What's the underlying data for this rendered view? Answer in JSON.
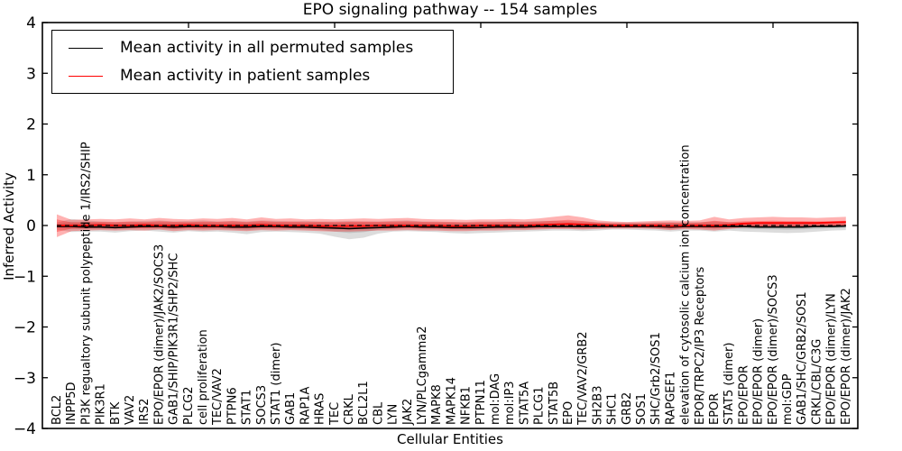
{
  "chart_data": {
    "type": "line",
    "title": "EPO signaling pathway -- 154 samples",
    "xlabel": "Cellular Entities",
    "ylabel": "Inferred Activity",
    "ylim": [
      -4,
      4
    ],
    "yticks": [
      4,
      3,
      2,
      1,
      0,
      -1,
      -2,
      -3,
      -4
    ],
    "grid": false,
    "legend_position": "upper left",
    "zero_line": {
      "style": "dashed",
      "color": "#000000",
      "y": 0
    },
    "colors": {
      "permuted_line": "#000000",
      "permuted_band": "rgba(130,130,130,0.28)",
      "patient_line": "#ff0000",
      "patient_band": "rgba(255,0,0,0.30)"
    },
    "categories": [
      "BCL2",
      "INPP5D",
      "PI3K regualtory subunit polypeptide 1/IRS2/SHIP",
      "PIK3R1",
      "BTK",
      "VAV2",
      "IRS2",
      "EPO/EPOR (dimer)/JAK2/SOCS3",
      "GAB1/SHIP/PIK3R1/SHP2/SHC",
      "PLCG2",
      "cell proliferation",
      "TEC/VAV2",
      "PTPN6",
      "STAT1",
      "SOCS3",
      "STAT1 (dimer)",
      "GAB1",
      "RAP1A",
      "HRAS",
      "TEC",
      "CRKL",
      "BCL2L1",
      "CBL",
      "LYN",
      "JAK2",
      "LYN/PLCgamma2",
      "MAPK8",
      "MAPK14",
      "NFKB1",
      "PTPN11",
      "mol:DAG",
      "mol:IP3",
      "STAT5A",
      "PLCG1",
      "STAT5B",
      "EPO",
      "TEC/VAV2/GRB2",
      "SH2B3",
      "SHC1",
      "GRB2",
      "SOS1",
      "SHC/Grb2/SOS1",
      "RAPGEF1",
      "elevation of cytosolic calcium ion concentration",
      "EPOR/TRPC2/IP3 Receptors",
      "EPOR",
      "STAT5 (dimer)",
      "EPO/EPOR",
      "EPO/EPOR (dimer)",
      "EPO/EPOR (dimer)/SOCS3",
      "mol:GDP",
      "GAB1/SHC/GRB2/SOS1",
      "CRKL/CBL/C3G",
      "EPO/EPOR (dimer)/LYN",
      "EPO/EPOR (dimer)/JAK2"
    ],
    "series": [
      {
        "name": "Mean activity in all permuted samples",
        "color": "#000000",
        "values": [
          -0.02,
          -0.02,
          -0.03,
          -0.03,
          -0.04,
          -0.03,
          -0.02,
          -0.02,
          -0.03,
          -0.02,
          -0.02,
          -0.02,
          -0.03,
          -0.03,
          -0.02,
          -0.02,
          -0.03,
          -0.03,
          -0.04,
          -0.05,
          -0.06,
          -0.05,
          -0.04,
          -0.03,
          -0.02,
          -0.03,
          -0.03,
          -0.04,
          -0.04,
          -0.04,
          -0.03,
          -0.03,
          -0.03,
          -0.02,
          -0.02,
          -0.02,
          -0.02,
          -0.02,
          -0.02,
          -0.02,
          -0.02,
          -0.02,
          -0.03,
          -0.02,
          -0.02,
          -0.02,
          -0.02,
          -0.02,
          -0.03,
          -0.03,
          -0.03,
          -0.03,
          -0.02,
          -0.02,
          -0.01
        ],
        "band_upper": [
          0.06,
          0.13,
          0.1,
          0.08,
          0.07,
          0.08,
          0.09,
          0.1,
          0.08,
          0.09,
          0.1,
          0.08,
          0.09,
          0.08,
          0.1,
          0.09,
          0.08,
          0.09,
          0.08,
          0.08,
          0.09,
          0.08,
          0.08,
          0.09,
          0.1,
          0.08,
          0.08,
          0.07,
          0.07,
          0.08,
          0.08,
          0.08,
          0.08,
          0.09,
          0.09,
          0.08,
          0.08,
          0.07,
          0.06,
          0.06,
          0.06,
          0.07,
          0.07,
          0.07,
          0.07,
          0.08,
          0.07,
          0.06,
          0.05,
          0.05,
          0.05,
          0.05,
          0.05,
          0.05,
          0.06
        ],
        "band_lower": [
          -0.08,
          -0.13,
          -0.12,
          -0.12,
          -0.14,
          -0.11,
          -0.1,
          -0.12,
          -0.14,
          -0.11,
          -0.13,
          -0.12,
          -0.14,
          -0.17,
          -0.13,
          -0.12,
          -0.13,
          -0.14,
          -0.16,
          -0.22,
          -0.27,
          -0.24,
          -0.16,
          -0.12,
          -0.11,
          -0.12,
          -0.13,
          -0.15,
          -0.16,
          -0.15,
          -0.14,
          -0.13,
          -0.12,
          -0.11,
          -0.1,
          -0.1,
          -0.11,
          -0.1,
          -0.08,
          -0.08,
          -0.09,
          -0.1,
          -0.12,
          -0.1,
          -0.1,
          -0.12,
          -0.1,
          -0.12,
          -0.13,
          -0.14,
          -0.15,
          -0.14,
          -0.12,
          -0.1,
          -0.09
        ]
      },
      {
        "name": "Mean activity in patient samples",
        "color": "#ff0000",
        "values": [
          0.0,
          0.0,
          0.0,
          0.01,
          0.0,
          0.0,
          0.01,
          0.0,
          0.0,
          0.01,
          0.0,
          0.0,
          0.0,
          0.0,
          0.01,
          0.0,
          0.0,
          0.0,
          -0.01,
          -0.01,
          -0.01,
          -0.01,
          0.0,
          0.0,
          0.0,
          0.0,
          0.0,
          -0.01,
          -0.01,
          0.0,
          0.0,
          0.0,
          0.0,
          0.01,
          0.02,
          0.03,
          0.02,
          0.01,
          0.0,
          0.0,
          0.0,
          0.0,
          -0.01,
          0.0,
          0.0,
          0.0,
          0.01,
          0.04,
          0.05,
          0.05,
          0.05,
          0.05,
          0.05,
          0.06,
          0.07
        ],
        "band_upper": [
          0.22,
          0.11,
          0.12,
          0.13,
          0.12,
          0.14,
          0.12,
          0.15,
          0.13,
          0.12,
          0.14,
          0.13,
          0.15,
          0.12,
          0.16,
          0.13,
          0.14,
          0.12,
          0.13,
          0.12,
          0.13,
          0.14,
          0.13,
          0.14,
          0.15,
          0.13,
          0.12,
          0.12,
          0.11,
          0.12,
          0.12,
          0.13,
          0.12,
          0.14,
          0.17,
          0.2,
          0.16,
          0.1,
          0.08,
          0.07,
          0.08,
          0.09,
          0.1,
          0.09,
          0.1,
          0.17,
          0.12,
          0.15,
          0.16,
          0.17,
          0.16,
          0.16,
          0.15,
          0.16,
          0.17
        ],
        "band_lower": [
          -0.23,
          -0.11,
          -0.1,
          -0.09,
          -0.1,
          -0.09,
          -0.1,
          -0.08,
          -0.11,
          -0.09,
          -0.1,
          -0.09,
          -0.1,
          -0.11,
          -0.09,
          -0.1,
          -0.09,
          -0.1,
          -0.11,
          -0.12,
          -0.12,
          -0.11,
          -0.1,
          -0.1,
          -0.09,
          -0.1,
          -0.1,
          -0.11,
          -0.11,
          -0.1,
          -0.1,
          -0.09,
          -0.09,
          -0.08,
          -0.07,
          -0.07,
          -0.08,
          -0.07,
          -0.06,
          -0.06,
          -0.06,
          -0.07,
          -0.09,
          -0.07,
          -0.08,
          -0.1,
          -0.07,
          -0.04,
          -0.04,
          -0.03,
          -0.03,
          -0.04,
          -0.03,
          -0.02,
          -0.02
        ]
      }
    ]
  }
}
